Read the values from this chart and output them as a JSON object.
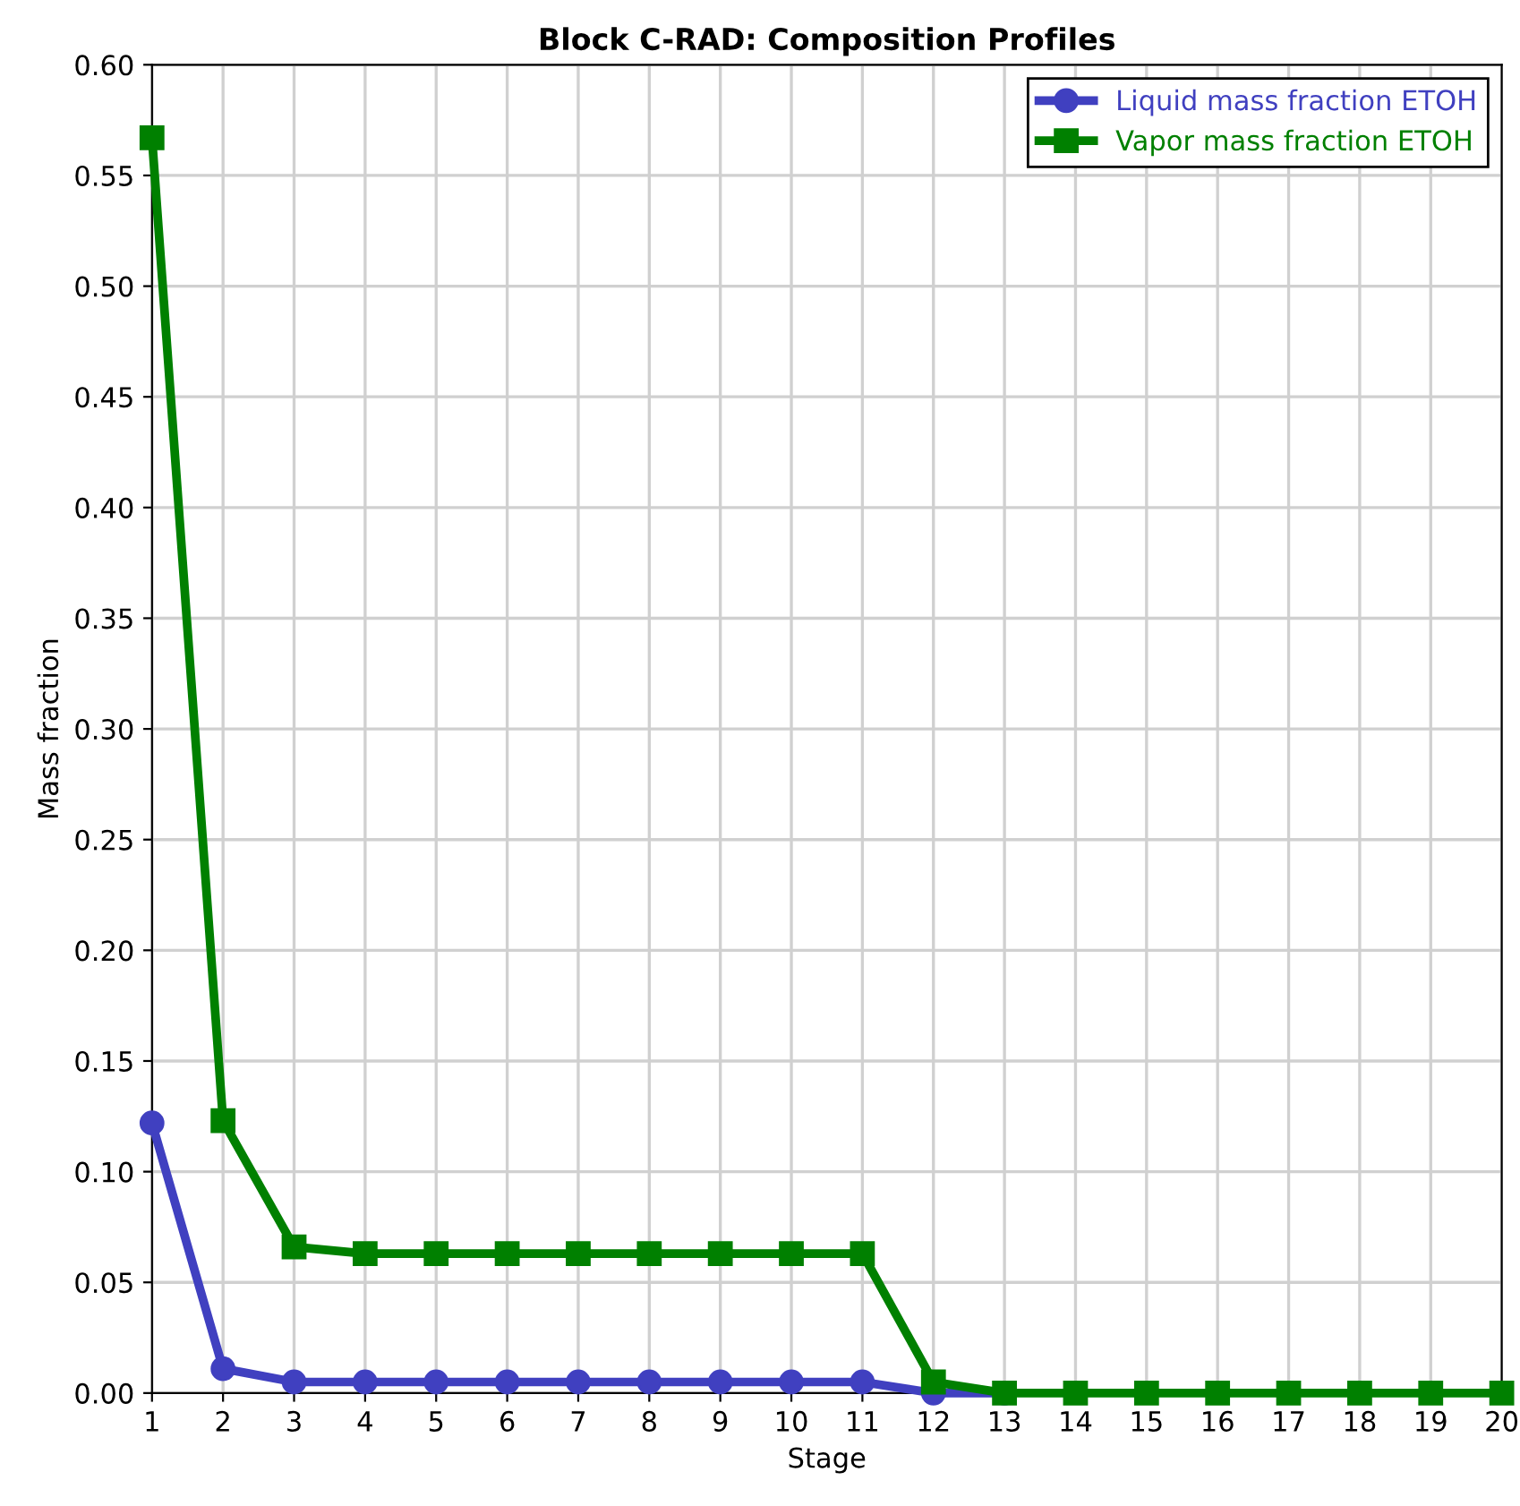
{
  "chart_data": {
    "type": "line",
    "title": "Block C-RAD: Composition Profiles",
    "xlabel": "Stage",
    "ylabel": "Mass fraction",
    "x": [
      1,
      2,
      3,
      4,
      5,
      6,
      7,
      8,
      9,
      10,
      11,
      12,
      13,
      14,
      15,
      16,
      17,
      18,
      19,
      20
    ],
    "series": [
      {
        "name": "Liquid mass fraction ETOH",
        "color": "#4040c0",
        "marker": "circle",
        "values": [
          0.122,
          0.011,
          0.005,
          0.005,
          0.005,
          0.005,
          0.005,
          0.005,
          0.005,
          0.005,
          0.005,
          0.0,
          0.0,
          null,
          null,
          null,
          null,
          null,
          null,
          null
        ]
      },
      {
        "name": "Vapor mass fraction ETOH",
        "color": "#008000",
        "marker": "square",
        "values": [
          0.567,
          0.123,
          0.066,
          0.063,
          0.063,
          0.063,
          0.063,
          0.063,
          0.063,
          0.063,
          0.063,
          0.005,
          0.0,
          0.0,
          0.0,
          0.0,
          0.0,
          0.0,
          0.0,
          0.0
        ]
      }
    ],
    "xlim": [
      1,
      20
    ],
    "xticks": [
      1,
      2,
      3,
      4,
      5,
      6,
      7,
      8,
      9,
      10,
      11,
      12,
      13,
      14,
      15,
      16,
      17,
      18,
      19,
      20
    ],
    "ylim": [
      0,
      0.6
    ],
    "yticks": [
      {
        "value": 0,
        "label": "0.00"
      },
      {
        "value": 0.05,
        "label": "0.05"
      },
      {
        "value": 0.1,
        "label": "0.10"
      },
      {
        "value": 0.15,
        "label": "0.15"
      },
      {
        "value": 0.2,
        "label": "0.20"
      },
      {
        "value": 0.25,
        "label": "0.25"
      },
      {
        "value": 0.3,
        "label": "0.30"
      },
      {
        "value": 0.35,
        "label": "0.35"
      },
      {
        "value": 0.4,
        "label": "0.40"
      },
      {
        "value": 0.45,
        "label": "0.45"
      },
      {
        "value": 0.5,
        "label": "0.50"
      },
      {
        "value": 0.55,
        "label": "0.55"
      },
      {
        "value": 0.6,
        "label": "0.60"
      }
    ],
    "grid": true,
    "legend": "top right",
    "line_style": "solid"
  }
}
